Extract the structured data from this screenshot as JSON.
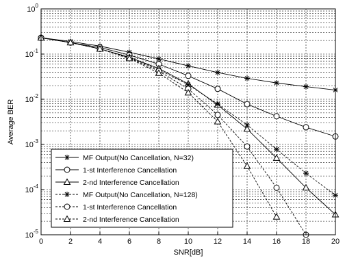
{
  "chart_data": {
    "type": "line",
    "title": "",
    "xlabel": "SNR[dB]",
    "ylabel": "Average BER",
    "xlim": [
      0,
      20
    ],
    "ylim": [
      1e-05,
      1
    ],
    "yscale": "log",
    "grid": "on (major and minor, dashed)",
    "legend_position": "bottom-left",
    "x_ticks": [
      0,
      2,
      4,
      6,
      8,
      10,
      12,
      14,
      16,
      18,
      20
    ],
    "y_ticks": [
      {
        "value": 1,
        "label": "10",
        "exp": "0"
      },
      {
        "value": 0.1,
        "label": "10",
        "exp": "-1"
      },
      {
        "value": 0.01,
        "label": "10",
        "exp": "-2"
      },
      {
        "value": 0.001,
        "label": "10",
        "exp": "-3"
      },
      {
        "value": 0.0001,
        "label": "10",
        "exp": "-4"
      },
      {
        "value": 1e-05,
        "label": "10",
        "exp": "-5"
      }
    ],
    "series": [
      {
        "name": "MF Output(No Cancellation, N=32)",
        "marker": "star",
        "line": "solid",
        "x": [
          0,
          2,
          4,
          6,
          8,
          10,
          12,
          14,
          16,
          18,
          20
        ],
        "y": [
          0.23,
          0.19,
          0.15,
          0.11,
          0.078,
          0.055,
          0.039,
          0.029,
          0.023,
          0.019,
          0.016
        ]
      },
      {
        "name": "1-st Interference Cancellation",
        "marker": "circle",
        "line": "solid",
        "x": [
          0,
          2,
          4,
          6,
          8,
          10,
          12,
          14,
          16,
          18,
          20
        ],
        "y": [
          0.23,
          0.18,
          0.14,
          0.095,
          0.06,
          0.033,
          0.017,
          0.0078,
          0.0042,
          0.0024,
          0.0015
        ]
      },
      {
        "name": "2-nd Interference Cancellation",
        "marker": "triangle",
        "line": "solid",
        "x": [
          0,
          2,
          4,
          6,
          8,
          10,
          12,
          14,
          16,
          18,
          20
        ],
        "y": [
          0.23,
          0.18,
          0.13,
          0.085,
          0.048,
          0.022,
          0.0075,
          0.0022,
          0.0005,
          0.00011,
          2.8e-05
        ]
      },
      {
        "name": "MF Output(No Cancellation, N=128)",
        "marker": "star",
        "line": "dashed",
        "x": [
          0,
          2,
          4,
          6,
          8,
          10,
          12,
          14,
          16,
          18,
          20
        ],
        "y": [
          0.23,
          0.18,
          0.13,
          0.085,
          0.045,
          0.021,
          0.0078,
          0.0027,
          0.00078,
          0.00023,
          7.5e-05
        ]
      },
      {
        "name": "1-st Interference Cancellation",
        "marker": "circle",
        "line": "dashed",
        "x": [
          0,
          2,
          4,
          6,
          8,
          10,
          12,
          14,
          16,
          18
        ],
        "y": [
          0.23,
          0.18,
          0.13,
          0.082,
          0.042,
          0.017,
          0.0045,
          0.0009,
          0.00011,
          1e-05
        ]
      },
      {
        "name": "2-nd Interference Cancellation",
        "marker": "triangle",
        "line": "dashed",
        "x": [
          0,
          2,
          4,
          6,
          8,
          10,
          12,
          14,
          16
        ],
        "y": [
          0.23,
          0.18,
          0.13,
          0.08,
          0.038,
          0.014,
          0.0032,
          0.00033,
          2.5e-05
        ]
      }
    ]
  }
}
